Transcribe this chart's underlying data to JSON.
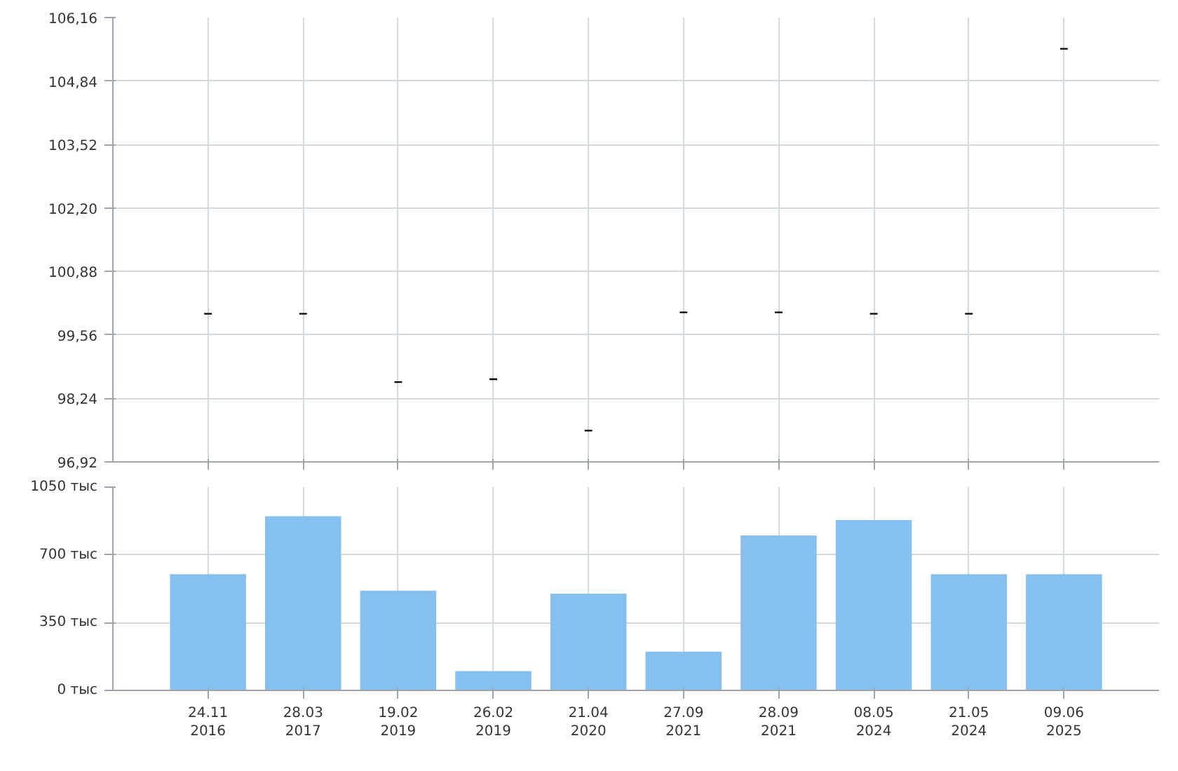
{
  "chart_data": [
    {
      "type": "candlestick",
      "categories": [
        null,
        null,
        null,
        null,
        null,
        null,
        null,
        null,
        null,
        null
      ],
      "ohlc": [
        [
          100.0,
          100.0,
          100.0,
          100.0
        ],
        [
          100.0,
          100.0,
          100.0,
          100.0
        ],
        [
          98.58,
          98.58,
          98.58,
          98.58
        ],
        [
          98.64,
          98.64,
          98.64,
          98.64
        ],
        [
          97.57,
          97.57,
          97.57,
          97.57
        ],
        [
          100.03,
          100.03,
          100.03,
          100.03
        ],
        [
          100.03,
          100.03,
          100.03,
          100.03
        ],
        [
          100.0,
          100.0,
          100.0,
          100.0
        ],
        [
          100.0,
          100.0,
          100.0,
          100.0
        ],
        [
          105.51,
          105.51,
          105.51,
          105.51
        ]
      ],
      "color": "#000000",
      "ylim": [
        96.92,
        106.16
      ],
      "yticks": [
        {
          "value": 96.92,
          "label": "96,92"
        },
        {
          "value": 98.24,
          "label": "98,24"
        },
        {
          "value": 99.56,
          "label": "99,56"
        },
        {
          "value": 100.88,
          "label": "100,88"
        },
        {
          "value": 102.2,
          "label": "102,20"
        },
        {
          "value": 103.52,
          "label": "103,52"
        },
        {
          "value": 104.84,
          "label": "104,84"
        },
        {
          "value": 106.16,
          "label": "106,16"
        }
      ],
      "grid": true
    },
    {
      "type": "bar",
      "categories": [
        "24.11\n2016",
        "28.03\n2017",
        "19.02\n2019",
        "26.02\n2019",
        "21.04\n2020",
        "27.09\n2021",
        "28.09\n2021",
        "08.05\n2024",
        "21.05\n2024",
        "09.06\n2025"
      ],
      "values": [
        600,
        900,
        515,
        100,
        500,
        200,
        800,
        880,
        600,
        600
      ],
      "color": "#86c0ef",
      "ylim": [
        0,
        1050
      ],
      "yticks": [
        {
          "value": 0,
          "label": "0 тыс"
        },
        {
          "value": 350,
          "label": "350 тыс"
        },
        {
          "value": 700,
          "label": "700 тыс"
        },
        {
          "value": 1050,
          "label": "1050 тыс"
        }
      ],
      "grid": true
    }
  ]
}
